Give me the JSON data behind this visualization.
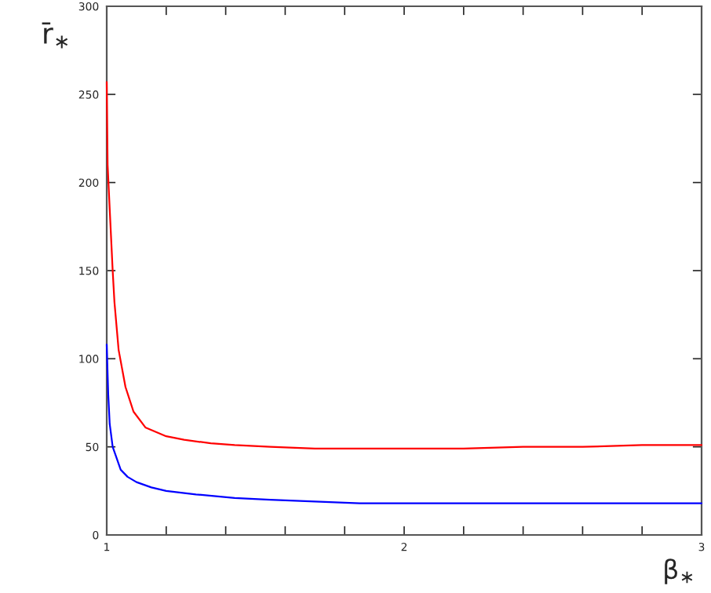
{
  "chart_data": {
    "type": "line",
    "xlabel": "β$_{∗}$",
    "ylabel": "r̄$_{∗}$",
    "series": [
      {
        "color": "#ff0000",
        "x": [
          1.0,
          1.003,
          1.01,
          1.02,
          1.026,
          1.04,
          1.063,
          1.09,
          1.13,
          1.2,
          1.26,
          1.35,
          1.43,
          1.55,
          1.7,
          1.85,
          2.0,
          2.2,
          2.4,
          2.6,
          2.8,
          3.0
        ],
        "values": [
          257,
          210,
          185,
          150,
          132,
          105,
          84,
          70,
          61,
          56,
          54,
          52,
          51,
          50,
          49,
          49,
          49,
          49,
          50,
          50,
          51,
          51
        ]
      },
      {
        "color": "#0000ff",
        "x": [
          1.0,
          1.005,
          1.01,
          1.02,
          1.047,
          1.07,
          1.1,
          1.15,
          1.2,
          1.3,
          1.43,
          1.55,
          1.7,
          1.85,
          2.0,
          2.2,
          2.4,
          2.6,
          2.7,
          2.8,
          3.0
        ],
        "values": [
          108,
          80,
          63,
          50,
          37,
          33,
          30,
          27,
          25,
          23,
          21,
          20,
          19,
          18,
          18,
          18,
          18,
          18,
          18,
          18,
          18
        ]
      }
    ],
    "xlim": [
      1,
      3
    ],
    "ylim": [
      0,
      300
    ],
    "xticks": [
      1,
      {
        "value": 1.2,
        "label": null
      },
      {
        "value": 1.4,
        "label": null
      },
      {
        "value": 1.6,
        "label": null
      },
      {
        "value": 1.8,
        "label": null
      },
      2,
      {
        "value": 2.2,
        "label": null
      },
      {
        "value": 2.4,
        "label": null
      },
      {
        "value": 2.6,
        "label": null
      },
      {
        "value": 2.8,
        "label": null
      },
      3
    ],
    "yticks": [
      0,
      50,
      100,
      150,
      200,
      250,
      300
    ],
    "grid": false,
    "legend": false
  }
}
